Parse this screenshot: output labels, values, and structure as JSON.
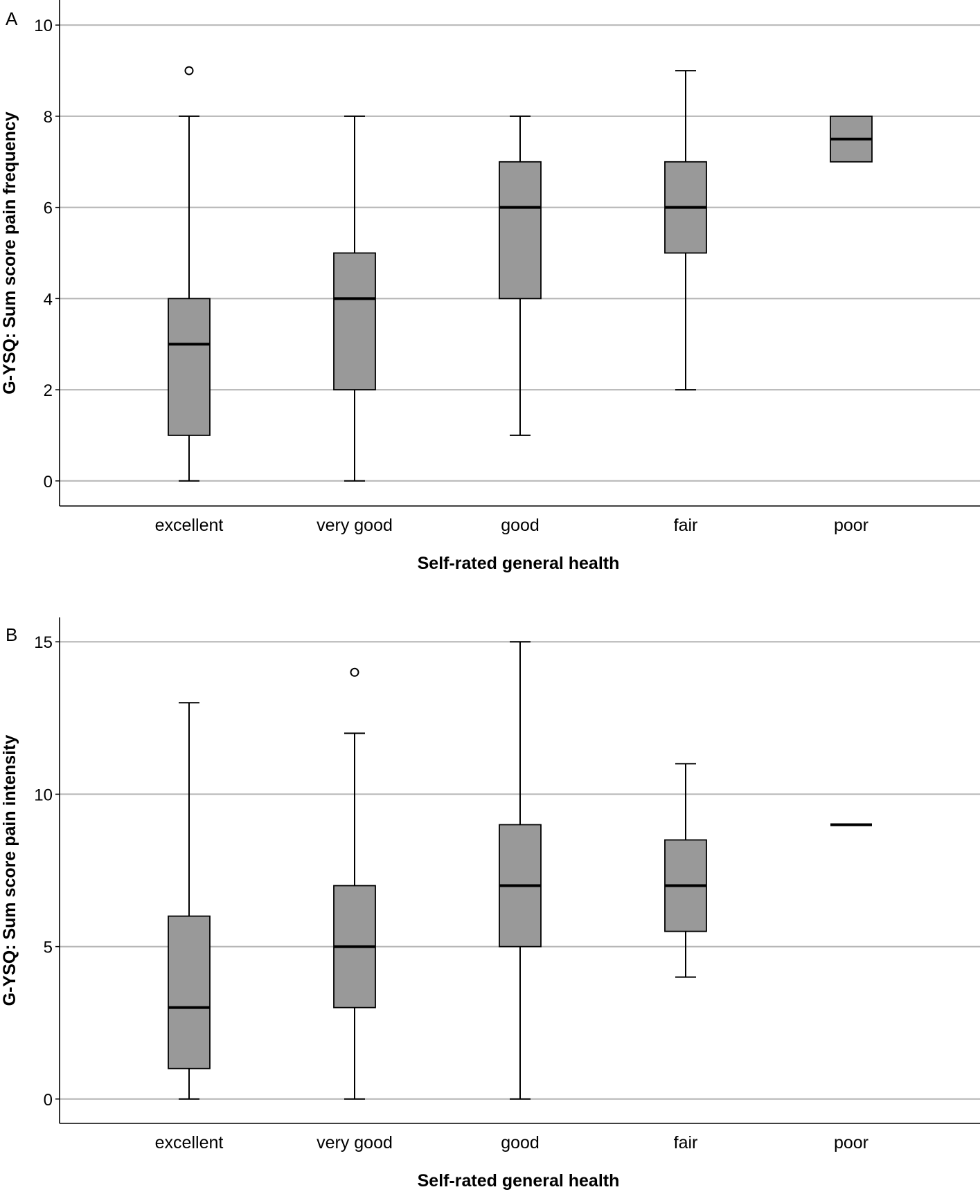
{
  "chart_data": [
    {
      "type": "box",
      "panel": "A",
      "xlabel": "Self-rated general health",
      "ylabel": "G-YSQ: Sum score pain frequency",
      "ylim": [
        -0.55,
        10.55
      ],
      "yticks": [
        0,
        2,
        4,
        6,
        8,
        10
      ],
      "categories": [
        "excellent",
        "very good",
        "good",
        "fair",
        "poor"
      ],
      "boxes": [
        {
          "category": "excellent",
          "min": 0,
          "q1": 1,
          "median": 3,
          "q3": 4,
          "max": 8,
          "outliers": [
            9
          ]
        },
        {
          "category": "very good",
          "min": 0,
          "q1": 2,
          "median": 4,
          "q3": 5,
          "max": 8,
          "outliers": []
        },
        {
          "category": "good",
          "min": 1,
          "q1": 4,
          "median": 6,
          "q3": 7,
          "max": 8,
          "outliers": []
        },
        {
          "category": "fair",
          "min": 2,
          "q1": 5,
          "median": 6,
          "q3": 7,
          "max": 9,
          "outliers": []
        },
        {
          "category": "poor",
          "min": 7,
          "q1": 7,
          "median": 7.5,
          "q3": 8,
          "max": 8,
          "outliers": []
        }
      ],
      "grid": true
    },
    {
      "type": "box",
      "panel": "B",
      "xlabel": "Self-rated general health",
      "ylabel": "G-YSQ: Sum score pain intensity",
      "ylim": [
        -0.8,
        15.8
      ],
      "yticks": [
        0,
        5,
        10,
        15
      ],
      "categories": [
        "excellent",
        "very good",
        "good",
        "fair",
        "poor"
      ],
      "boxes": [
        {
          "category": "excellent",
          "min": 0,
          "q1": 1,
          "median": 3,
          "q3": 6,
          "max": 13,
          "outliers": []
        },
        {
          "category": "very good",
          "min": 0,
          "q1": 3,
          "median": 5,
          "q3": 7,
          "max": 12,
          "outliers": [
            14
          ]
        },
        {
          "category": "good",
          "min": 0,
          "q1": 5,
          "median": 7,
          "q3": 9,
          "max": 15,
          "outliers": []
        },
        {
          "category": "fair",
          "min": 4,
          "q1": 5.5,
          "median": 7,
          "q3": 8.5,
          "max": 11,
          "outliers": []
        },
        {
          "category": "poor",
          "min": 9,
          "q1": 9,
          "median": 9,
          "q3": 9,
          "max": 9,
          "outliers": []
        }
      ],
      "grid": true
    }
  ]
}
